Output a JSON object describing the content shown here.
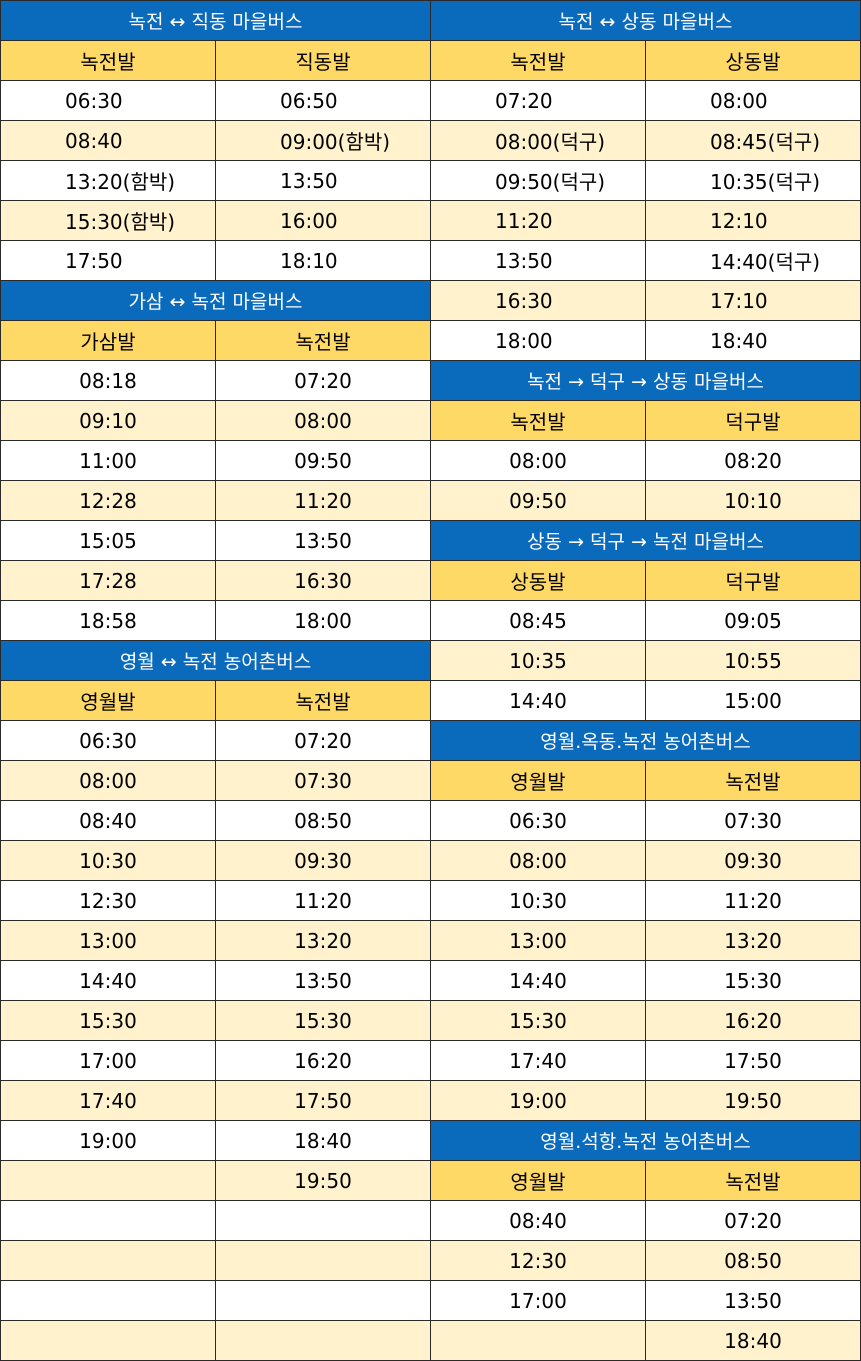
{
  "tables": [
    {
      "id": "nokjeon-jikdong",
      "title": "녹전 ↔ 직동 마을버스",
      "headers": [
        "녹전발",
        "직동발"
      ],
      "rows": [
        [
          "06:30",
          "06:50"
        ],
        [
          "08:40",
          "09:00(함박)"
        ],
        [
          "13:20(함박)",
          "13:50"
        ],
        [
          "15:30(함박)",
          "16:00"
        ],
        [
          "17:50",
          "18:10"
        ]
      ]
    },
    {
      "id": "gasam-nokjeon",
      "title": "가삼 ↔ 녹전  마을버스",
      "headers": [
        "가삼발",
        "녹전발"
      ],
      "rows": [
        [
          "08:18",
          "07:20"
        ],
        [
          "09:10",
          "08:00"
        ],
        [
          "11:00",
          "09:50"
        ],
        [
          "12:28",
          "11:20"
        ],
        [
          "15:05",
          "13:50"
        ],
        [
          "17:28",
          "16:30"
        ],
        [
          "18:58",
          "18:00"
        ]
      ]
    },
    {
      "id": "yeongwol-nokjeon",
      "title": "영월 ↔ 녹전 농어촌버스",
      "headers": [
        "영월발",
        "녹전발"
      ],
      "rows": [
        [
          "06:30",
          "07:20"
        ],
        [
          "08:00",
          "07:30"
        ],
        [
          "08:40",
          "08:50"
        ],
        [
          "10:30",
          "09:30"
        ],
        [
          "12:30",
          "11:20"
        ],
        [
          "13:00",
          "13:20"
        ],
        [
          "14:40",
          "13:50"
        ],
        [
          "15:30",
          "15:30"
        ],
        [
          "17:00",
          "16:20"
        ],
        [
          "17:40",
          "17:50"
        ],
        [
          "19:00",
          "18:40"
        ],
        [
          "",
          "19:50"
        ],
        [
          "",
          ""
        ],
        [
          "",
          ""
        ],
        [
          "",
          ""
        ],
        [
          "",
          ""
        ]
      ]
    },
    {
      "id": "nokjeon-sangdong",
      "title": "녹전 ↔ 상동 마을버스",
      "headers": [
        "녹전발",
        "상동발"
      ],
      "rows": [
        [
          "07:20",
          "08:00"
        ],
        [
          "08:00(덕구)",
          "08:45(덕구)"
        ],
        [
          "09:50(덕구)",
          "10:35(덕구)"
        ],
        [
          "11:20",
          "12:10"
        ],
        [
          "13:50",
          "14:40(덕구)"
        ],
        [
          "16:30",
          "17:10"
        ],
        [
          "18:00",
          "18:40"
        ]
      ]
    },
    {
      "id": "nokjeon-deokgu-sangdong",
      "title": "녹전 → 덕구 → 상동  마을버스",
      "headers": [
        "녹전발",
        "덕구발"
      ],
      "rows": [
        [
          "08:00",
          "08:20"
        ],
        [
          "09:50",
          "10:10"
        ]
      ]
    },
    {
      "id": "sangdong-deokgu-nokjeon",
      "title": "상동 → 덕구 → 녹전  마을버스",
      "headers": [
        "상동발",
        "덕구발"
      ],
      "rows": [
        [
          "08:45",
          "09:05"
        ],
        [
          "10:35",
          "10:55"
        ],
        [
          "14:40",
          "15:00"
        ]
      ]
    },
    {
      "id": "yeongwol-okdong-nokjeon",
      "title": "영월.옥동.녹전 농어촌버스",
      "headers": [
        "영월발",
        "녹전발"
      ],
      "rows": [
        [
          "06:30",
          "07:30"
        ],
        [
          "08:00",
          "09:30"
        ],
        [
          "10:30",
          "11:20"
        ],
        [
          "13:00",
          "13:20"
        ],
        [
          "14:40",
          "15:30"
        ],
        [
          "15:30",
          "16:20"
        ],
        [
          "17:40",
          "17:50"
        ],
        [
          "19:00",
          "19:50"
        ]
      ]
    },
    {
      "id": "yeongwol-seokhang-nokjeon",
      "title": "영월.석항.녹전 농어촌버스",
      "headers": [
        "영월발",
        "녹전발"
      ],
      "rows": [
        [
          "08:40",
          "07:20"
        ],
        [
          "12:30",
          "08:50"
        ],
        [
          "17:00",
          "13:50"
        ],
        [
          "",
          "18:40"
        ]
      ]
    }
  ],
  "colors": {
    "title_bg": "#0a6bbd",
    "title_text": "#ffffff",
    "header_bg": "#ffd966",
    "stripe_bg": "#fff2cc",
    "plain_bg": "#ffffff",
    "border": "#2a2a2a"
  }
}
